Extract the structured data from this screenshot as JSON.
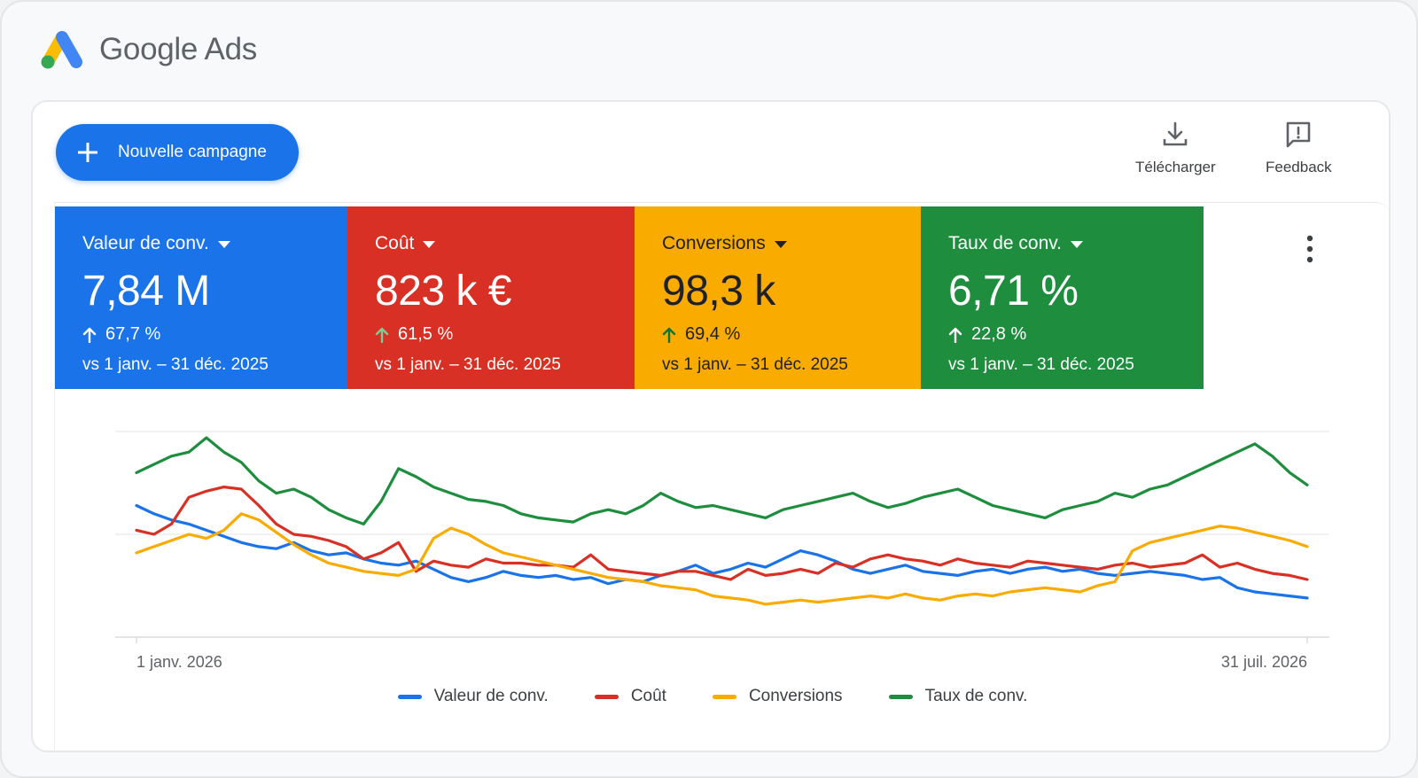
{
  "app": {
    "name": "Google Ads",
    "logo_icon": "google-ads-logo"
  },
  "toolbar": {
    "new_campaign_label": "Nouvelle campagne",
    "download_label": "Télécharger",
    "feedback_label": "Feedback"
  },
  "colors": {
    "blue": "#1a73e8",
    "red": "#d93025",
    "yellow": "#f9ab00",
    "green": "#1e8e3e"
  },
  "metrics": [
    {
      "name": "Valeur de conv.",
      "value": "7,84 M",
      "delta": "67,7 %",
      "compare": "vs 1 janv. – 31 déc. 2025"
    },
    {
      "name": "Coût",
      "value": "823 k €",
      "delta": "61,5 %",
      "compare": "vs 1 janv. – 31 déc. 2025"
    },
    {
      "name": "Conversions",
      "value": "98,3 k",
      "delta": "69,4 %",
      "compare": "vs 1 janv. – 31 déc. 2025"
    },
    {
      "name": "Taux de conv.",
      "value": "6,71 %",
      "delta": "22,8 %",
      "compare": "vs 1 janv. – 31 déc. 2025"
    }
  ],
  "chart_data": {
    "type": "line",
    "x_start": "1 janv. 2026",
    "x_end": "31 juil. 2026",
    "x_ticks": [
      "1 janv. 2026",
      "31 juil. 2026"
    ],
    "y_range": [
      0,
      100
    ],
    "grid": true,
    "legend_position": "bottom-center",
    "series": [
      {
        "name": "Valeur de conv.",
        "color": "#1a73e8",
        "values": [
          64,
          60,
          57,
          55,
          52,
          49,
          46,
          44,
          43,
          46,
          42,
          40,
          41,
          38,
          36,
          35,
          37,
          33,
          29,
          27,
          29,
          32,
          30,
          29,
          30,
          28,
          29,
          26,
          28,
          27,
          30,
          32,
          35,
          31,
          33,
          36,
          34,
          38,
          42,
          40,
          37,
          33,
          31,
          33,
          35,
          32,
          31,
          30,
          32,
          33,
          31,
          33,
          34,
          32,
          33,
          31,
          30,
          31,
          32,
          31,
          30,
          28,
          29,
          24,
          22,
          21,
          20,
          19
        ]
      },
      {
        "name": "Coût",
        "color": "#d93025",
        "values": [
          52,
          50,
          55,
          68,
          71,
          73,
          72,
          64,
          55,
          50,
          49,
          47,
          44,
          38,
          41,
          46,
          32,
          37,
          35,
          34,
          38,
          36,
          36,
          35,
          35,
          34,
          40,
          33,
          32,
          31,
          30,
          32,
          32,
          30,
          28,
          33,
          30,
          31,
          33,
          31,
          36,
          34,
          38,
          40,
          38,
          37,
          35,
          38,
          36,
          35,
          34,
          37,
          36,
          35,
          34,
          33,
          35,
          36,
          34,
          35,
          36,
          40,
          34,
          36,
          33,
          31,
          30,
          28
        ]
      },
      {
        "name": "Conversions",
        "color": "#f9ab00",
        "values": [
          41,
          44,
          47,
          50,
          48,
          52,
          60,
          57,
          51,
          45,
          40,
          36,
          34,
          32,
          31,
          30,
          33,
          48,
          53,
          50,
          45,
          41,
          39,
          37,
          35,
          33,
          31,
          29,
          28,
          27,
          25,
          24,
          23,
          20,
          19,
          18,
          16,
          17,
          18,
          17,
          18,
          19,
          20,
          19,
          21,
          19,
          18,
          20,
          21,
          20,
          22,
          23,
          24,
          23,
          22,
          25,
          27,
          42,
          46,
          48,
          50,
          52,
          54,
          53,
          51,
          49,
          47,
          44
        ]
      },
      {
        "name": "Taux de conv.",
        "color": "#1e8e3e",
        "values": [
          80,
          84,
          88,
          90,
          97,
          90,
          85,
          76,
          70,
          72,
          68,
          62,
          58,
          55,
          66,
          82,
          78,
          73,
          70,
          67,
          66,
          64,
          60,
          58,
          57,
          56,
          60,
          62,
          60,
          64,
          70,
          66,
          63,
          64,
          62,
          60,
          58,
          62,
          64,
          66,
          68,
          70,
          66,
          63,
          65,
          68,
          70,
          72,
          68,
          64,
          62,
          60,
          58,
          62,
          64,
          66,
          70,
          68,
          72,
          74,
          78,
          82,
          86,
          90,
          94,
          88,
          80,
          74
        ]
      }
    ]
  }
}
